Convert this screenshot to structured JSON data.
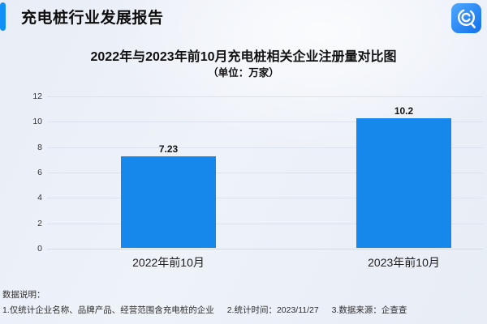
{
  "header": {
    "title": "充电桩行业发展报告",
    "logo_icon": "qichacha-app-icon"
  },
  "chart_data": {
    "type": "bar",
    "title": "2022年与2023年前10月充电桩相关企业注册量对比图",
    "subtitle": "（单位：万家）",
    "categories": [
      "2022年前10月",
      "2023年前10月"
    ],
    "values": [
      7.23,
      10.2
    ],
    "value_labels": [
      "7.23",
      "10.2"
    ],
    "ylim": [
      0,
      12
    ],
    "yticks": [
      0,
      2,
      4,
      6,
      8,
      10,
      12
    ],
    "grid": "horizontal",
    "legend": "none",
    "bar_color": "#1687EB"
  },
  "footnote": {
    "label": "数据说明：",
    "items": [
      "1.仅统计企业名称、品牌产品、经营范围含充电桩的企业",
      "2.统计时间：2023/11/27",
      "3.数据来源：企查查"
    ]
  },
  "colors": {
    "bar": "#1687EB",
    "header_accent": "#1190F8",
    "logo_gradient_start": "#4FA8FF",
    "logo_gradient_end": "#1070EC",
    "background": "#ECF0F7"
  }
}
